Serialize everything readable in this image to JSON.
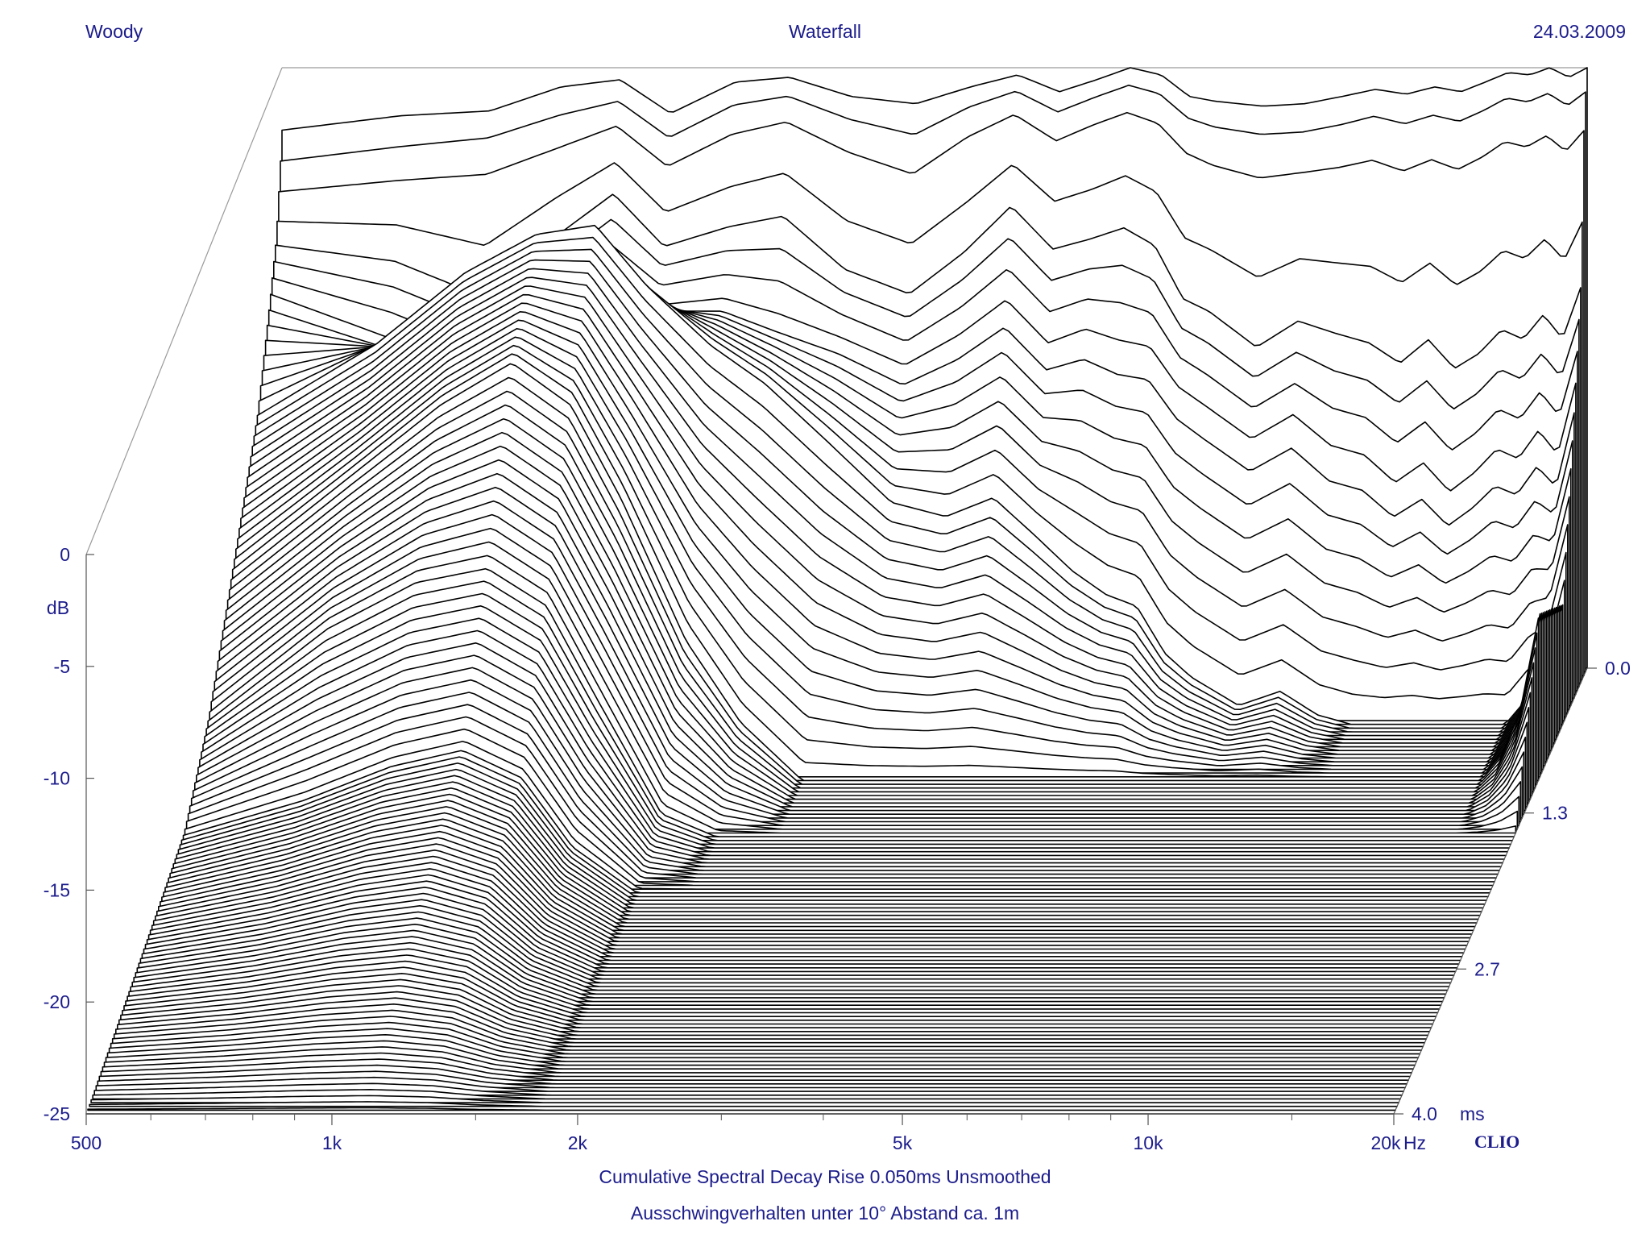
{
  "header": {
    "left": "Woody",
    "center": "Waterfall",
    "right": "24.03.2009"
  },
  "captions": {
    "line1": "Cumulative Spectral Decay    Rise 0.050ms    Unsmoothed",
    "line2": "Ausschwingverhalten unter 10° Abstand ca. 1m"
  },
  "brand": "CLIO",
  "colors": {
    "text": "#1c1c8c",
    "lines": "#000000",
    "background": "#ffffff"
  },
  "chart_data": {
    "type": "waterfall",
    "title": "Waterfall",
    "xlabel": "Hz",
    "ylabel": "dB",
    "zlabel": "ms",
    "xscale": "log",
    "xlim": [
      500,
      20000
    ],
    "ylim": [
      -25,
      0
    ],
    "zlim": [
      0,
      4.0
    ],
    "x_ticks": [
      "500",
      "1k",
      "2k",
      "5k",
      "10k",
      "20k"
    ],
    "x_tick_values": [
      500,
      1000,
      2000,
      5000,
      10000,
      20000
    ],
    "x_unit_label": "Hz",
    "y_ticks": [
      "0",
      "-5",
      "-10",
      "-15",
      "-20",
      "-25"
    ],
    "y_tick_values": [
      0,
      -5,
      -10,
      -15,
      -20,
      -25
    ],
    "z_ticks": [
      "0.0",
      "1.3",
      "2.7",
      "4.0"
    ],
    "z_tick_values": [
      0.0,
      1.3,
      2.7,
      4.0
    ],
    "z_unit_label": "ms",
    "slice_count": 120,
    "profile_freqs": [
      500,
      700,
      900,
      1100,
      1300,
      1500,
      1800,
      2100,
      2500,
      3000,
      3500,
      4000,
      4500,
      5000,
      5500,
      6000,
      6500,
      7000,
      8000,
      9000,
      10000,
      11000,
      12000,
      13000,
      14000,
      15000,
      16000,
      17000,
      18000,
      19000,
      20000
    ],
    "decay_slices": [
      {
        "time_ms": 0.0,
        "levels_db": [
          -2.6,
          -2.0,
          -1.8,
          -0.8,
          -0.5,
          -1.9,
          -0.6,
          -0.4,
          -1.2,
          -1.5,
          -0.8,
          -0.3,
          -1.0,
          -0.5,
          0.0,
          -0.3,
          -1.2,
          -1.4,
          -1.6,
          -1.5,
          -1.2,
          -0.9,
          -1.1,
          -0.8,
          -1.0,
          -0.6,
          -0.2,
          -0.3,
          0.0,
          -0.4,
          0.0
        ]
      },
      {
        "time_ms": 0.06,
        "levels_db": [
          -4.6,
          -4.0,
          -3.5,
          -2.6,
          -1.8,
          -3.4,
          -2.0,
          -1.5,
          -2.6,
          -3.5,
          -2.0,
          -1.2,
          -2.2,
          -1.5,
          -1.0,
          -1.4,
          -2.5,
          -3.0,
          -3.4,
          -3.3,
          -3.0,
          -2.6,
          -3.0,
          -2.6,
          -2.9,
          -2.4,
          -1.8,
          -2.0,
          -1.6,
          -2.2,
          -1.5
        ]
      },
      {
        "time_ms": 0.12,
        "levels_db": [
          -6.5,
          -7.0,
          -8.5,
          -6.0,
          -4.2,
          -6.5,
          -5.6,
          -5.0,
          -7.4,
          -8.4,
          -6.6,
          -4.6,
          -6.4,
          -6.0,
          -5.4,
          -6.2,
          -8.5,
          -9.0,
          -10.5,
          -9.4,
          -9.8,
          -10.2,
          -11.0,
          -10.0,
          -11.2,
          -10.6,
          -9.6,
          -10.0,
          -9.0,
          -10.0,
          -8.0
        ]
      },
      {
        "time_ms": 0.25,
        "levels_db": [
          -8.5,
          -10.5,
          -12.0,
          -9.6,
          -7.6,
          -9.0,
          -8.8,
          -9.6,
          -10.4,
          -11.6,
          -10.4,
          -9.0,
          -10.8,
          -10.2,
          -10.8,
          -11.0,
          -12.6,
          -13.4,
          -14.8,
          -13.8,
          -15.2,
          -15.6,
          -16.8,
          -16.0,
          -17.2,
          -16.4,
          -15.4,
          -15.8,
          -14.6,
          -15.6,
          -12.5
        ]
      },
      {
        "time_ms": 0.5,
        "levels_db": [
          -12.0,
          -9.0,
          -6.0,
          -4.4,
          -4.0,
          -6.5,
          -9.0,
          -10.6,
          -13.0,
          -15.6,
          -16.2,
          -15.4,
          -17.0,
          -18.5,
          -19.5,
          -20.0,
          -22.0,
          -23.0,
          -24.2,
          -23.6,
          -24.6,
          -25.0,
          -25.0,
          -25.0,
          -25.0,
          -25.0,
          -25.0,
          -25.0,
          -24.0,
          -23.0,
          -20.0
        ]
      },
      {
        "time_ms": 1.0,
        "levels_db": [
          -16.0,
          -12.0,
          -9.0,
          -7.2,
          -9.0,
          -13.0,
          -19.0,
          -22.5,
          -25.0,
          -25.0,
          -25.0,
          -25.0,
          -25.0,
          -25.0,
          -25.0,
          -25.0,
          -25.0,
          -25.0,
          -25.0,
          -25.0,
          -25.0,
          -25.0,
          -25.0,
          -25.0,
          -25.0,
          -25.0,
          -25.0,
          -25.0,
          -24.0,
          -22.0,
          -18.0
        ]
      },
      {
        "time_ms": 1.5,
        "levels_db": [
          -20.0,
          -16.0,
          -14.0,
          -13.4,
          -15.0,
          -19.0,
          -24.0,
          -25.0,
          -25.0,
          -25.0,
          -25.0,
          -25.0,
          -25.0,
          -25.0,
          -25.0,
          -25.0,
          -25.0,
          -25.0,
          -25.0,
          -25.0,
          -25.0,
          -25.0,
          -25.0,
          -25.0,
          -25.0,
          -25.0,
          -25.0,
          -25.0,
          -25.0,
          -25.0,
          -25.0
        ]
      },
      {
        "time_ms": 2.0,
        "levels_db": [
          -22.5,
          -21.0,
          -19.5,
          -18.8,
          -20.0,
          -23.0,
          -25.0,
          -25.0,
          -25.0,
          -25.0,
          -25.0,
          -25.0,
          -25.0,
          -25.0,
          -25.0,
          -25.0,
          -25.0,
          -25.0,
          -25.0,
          -25.0,
          -25.0,
          -25.0,
          -25.0,
          -25.0,
          -25.0,
          -25.0,
          -25.0,
          -25.0,
          -25.0,
          -25.0,
          -25.0
        ]
      },
      {
        "time_ms": 4.0,
        "levels_db": [
          -25.0,
          -25.0,
          -25.0,
          -25.0,
          -25.0,
          -25.0,
          -25.0,
          -25.0,
          -25.0,
          -25.0,
          -25.0,
          -25.0,
          -25.0,
          -25.0,
          -25.0,
          -25.0,
          -25.0,
          -25.0,
          -25.0,
          -25.0,
          -25.0,
          -25.0,
          -25.0,
          -25.0,
          -25.0,
          -25.0,
          -25.0,
          -25.0,
          -25.0,
          -25.0,
          -25.0
        ]
      }
    ],
    "grid": false,
    "legend": "none"
  }
}
